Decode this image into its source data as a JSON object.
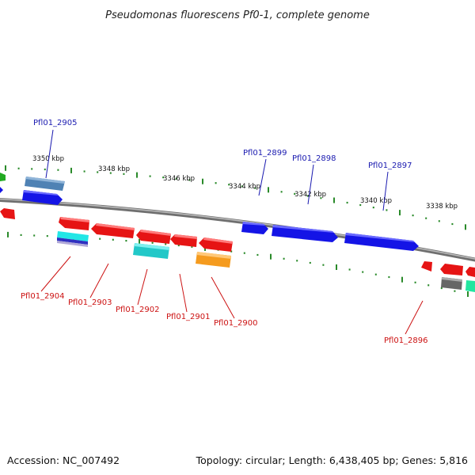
{
  "title": "Pseudomonas fluorescens Pf0-1, complete genome",
  "footer": {
    "accession": "Accession: NC_007492",
    "summary": "Topology: circular; Length: 6,438,405 bp; Genes: 5,816"
  },
  "scale_labels": [
    "3350 kbp",
    "3348 kbp",
    "3346 kbp",
    "3344 kbp",
    "3342 kbp",
    "3340 kbp",
    "3338 kbp"
  ],
  "gene_labels": {
    "forward": [
      "Pfl01_2905",
      "Pfl01_2899",
      "Pfl01_2898",
      "Pfl01_2897"
    ],
    "reverse": [
      "Pfl01_2904",
      "Pfl01_2903",
      "Pfl01_2902",
      "Pfl01_2901",
      "Pfl01_2900",
      "Pfl01_2896"
    ]
  },
  "colors": {
    "forward_label": "#1a1ab0",
    "reverse_label": "#cc1111",
    "backbone": "#8a8a8a",
    "tick": "#2a8a2a",
    "blue_gene": "#1414e6",
    "red_gene": "#e61414",
    "cyan_gene": "#22c8c8",
    "orange_gene": "#f59b1e",
    "steel_gene": "#4f82b4",
    "grey_gene": "#666666",
    "mint_gene": "#22e6a0",
    "green_gene": "#22aa22"
  }
}
